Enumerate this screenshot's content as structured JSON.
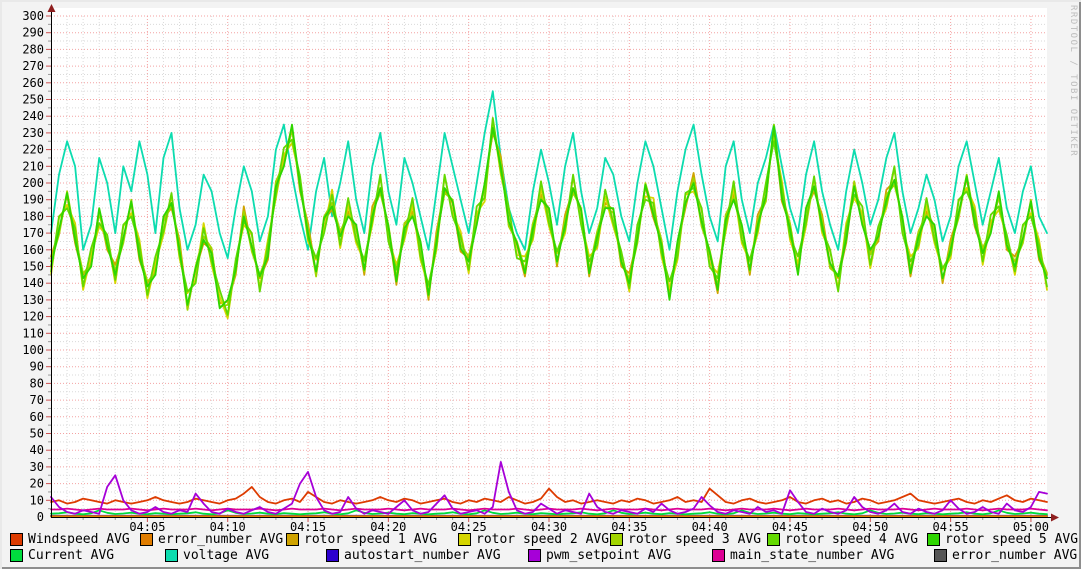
{
  "watermark": "RRDTOOL / TOBI OETIKER",
  "legend": {
    "rows": [
      {
        "items": [
          {
            "name": "windspeed",
            "label": "Windspeed AVG",
            "color": "#dd3b00"
          },
          {
            "name": "error_number",
            "label": "error_number AVG",
            "color": "#e07d00"
          },
          {
            "name": "rotor_speed_1",
            "label": "rotor speed 1 AVG",
            "color": "#cfa300"
          },
          {
            "name": "rotor_speed_2",
            "label": "rotor speed 2 AVG",
            "color": "#d6d600"
          },
          {
            "name": "rotor_speed_3",
            "label": "rotor speed 3 AVG",
            "color": "#a2d500"
          },
          {
            "name": "rotor_speed_4",
            "label": "rotor speed 4 AVG",
            "color": "#63d900"
          },
          {
            "name": "rotor_speed_5",
            "label": "rotor speed 5 AVG",
            "color": "#2ed600"
          }
        ]
      },
      {
        "items": [
          {
            "name": "current",
            "label": "Current AVG",
            "color": "#00dd3e"
          },
          {
            "name": "voltage",
            "label": "voltage AVG",
            "color": "#0cdcaf"
          },
          {
            "name": "autostart_number",
            "label": "autostart_number AVG",
            "color": "#2c00cf"
          },
          {
            "name": "pwm_setpoint",
            "label": "pwm_setpoint AVG",
            "color": "#a600d8"
          },
          {
            "name": "main_state_number",
            "label": "main_state_number AVG",
            "color": "#dd0094"
          },
          {
            "name": "error_number_dark",
            "label": "error_number AVG",
            "color": "#555555"
          }
        ]
      }
    ]
  },
  "chart_data": {
    "type": "line",
    "title": "",
    "xlabel": "",
    "ylabel": "",
    "grid": true,
    "legend_position": "bottom",
    "point_count": 125,
    "x_axis": {
      "start": "03:59",
      "end": "05:01",
      "total_minutes": 62,
      "minor_step_minutes": 1,
      "major_ticks": [
        {
          "minute": 6,
          "label": "04:05"
        },
        {
          "minute": 11,
          "label": "04:10"
        },
        {
          "minute": 16,
          "label": "04:15"
        },
        {
          "minute": 21,
          "label": "04:20"
        },
        {
          "minute": 26,
          "label": "04:25"
        },
        {
          "minute": 31,
          "label": "04:30"
        },
        {
          "minute": 36,
          "label": "04:35"
        },
        {
          "minute": 41,
          "label": "04:40"
        },
        {
          "minute": 46,
          "label": "04:45"
        },
        {
          "minute": 51,
          "label": "04:50"
        },
        {
          "minute": 56,
          "label": "04:55"
        },
        {
          "minute": 61,
          "label": "05:00"
        }
      ]
    },
    "y_axis": {
      "min": 0,
      "max": 300,
      "major_step": 10,
      "minor_step": 5,
      "tick_labels": [
        "0",
        "10",
        "20",
        "30",
        "40",
        "50",
        "60",
        "70",
        "80",
        "90",
        "100",
        "110",
        "120",
        "130",
        "140",
        "150",
        "160",
        "170",
        "180",
        "190",
        "200",
        "210",
        "220",
        "230",
        "240",
        "250",
        "260",
        "270",
        "280",
        "290",
        "300"
      ]
    },
    "rotor_base": [
      150,
      175,
      190,
      170,
      140,
      155,
      180,
      165,
      145,
      170,
      185,
      160,
      135,
      150,
      175,
      190,
      160,
      130,
      145,
      170,
      155,
      130,
      125,
      150,
      180,
      165,
      140,
      160,
      195,
      215,
      230,
      200,
      170,
      150,
      175,
      190,
      165,
      185,
      170,
      150,
      180,
      200,
      170,
      145,
      170,
      185,
      160,
      135,
      165,
      200,
      185,
      165,
      150,
      180,
      195,
      235,
      210,
      180,
      160,
      150,
      170,
      195,
      180,
      155,
      175,
      200,
      180,
      150,
      165,
      190,
      180,
      155,
      140,
      170,
      195,
      185,
      160,
      135,
      160,
      190,
      200,
      180,
      155,
      140,
      175,
      195,
      170,
      150,
      175,
      195,
      230,
      195,
      170,
      150,
      180,
      200,
      175,
      155,
      140,
      170,
      195,
      180,
      155,
      170,
      190,
      205,
      175,
      150,
      165,
      185,
      170,
      145,
      160,
      185,
      200,
      180,
      155,
      175,
      190,
      165,
      150,
      170,
      185,
      160,
      140
    ],
    "series": [
      {
        "name": "autostart_number",
        "legend": "autostart_number AVG",
        "color": "#2c00cf",
        "value": 0.7
      },
      {
        "name": "error_number_dark",
        "legend": "error_number AVG",
        "color": "#555555",
        "value": 0.3
      },
      {
        "name": "error_number",
        "legend": "error_number AVG",
        "color": "#e07d00",
        "value": 0.5
      },
      {
        "name": "current",
        "legend": "Current AVG",
        "color": "#00dd3e",
        "pattern": [
          2,
          2.2,
          2.8,
          2,
          1.6,
          2.2,
          4,
          2.5,
          1.8,
          2.1,
          2.6,
          2,
          1.7,
          2.3,
          2,
          1.6
        ]
      },
      {
        "name": "main_state_number",
        "legend": "main_state_number AVG",
        "color": "#dd0094",
        "pattern": [
          4.5,
          4.5,
          5,
          4.5,
          4,
          4.5,
          5,
          4.5
        ]
      },
      {
        "name": "windspeed",
        "legend": "Windspeed AVG",
        "color": "#dd3b00",
        "values": [
          9,
          10,
          8,
          9,
          11,
          10,
          9,
          8,
          10,
          9,
          8,
          9,
          10,
          12,
          10,
          9,
          8,
          9,
          11,
          10,
          9,
          8,
          10,
          11,
          14,
          18,
          12,
          9,
          8,
          10,
          11,
          9,
          15,
          12,
          9,
          8,
          10,
          9,
          8,
          9,
          10,
          12,
          10,
          9,
          11,
          10,
          8,
          9,
          10,
          11,
          9,
          8,
          10,
          9,
          11,
          10,
          9,
          12,
          10,
          8,
          9,
          11,
          17,
          12,
          9,
          10,
          8,
          9,
          10,
          9,
          8,
          10,
          9,
          11,
          10,
          8,
          9,
          10,
          12,
          9,
          10,
          9,
          17,
          13,
          9,
          8,
          10,
          11,
          9,
          8,
          9,
          10,
          12,
          9,
          8,
          10,
          11,
          9,
          10,
          8,
          9,
          11,
          10,
          8,
          9,
          10,
          12,
          14,
          10,
          9,
          8,
          9,
          10,
          11,
          9,
          8,
          10,
          9,
          11,
          13,
          10,
          9,
          11,
          10,
          9
        ]
      },
      {
        "name": "voltage",
        "legend": "voltage AVG",
        "color": "#0cdcaf",
        "values": [
          170,
          205,
          225,
          210,
          160,
          175,
          215,
          200,
          170,
          210,
          195,
          225,
          205,
          170,
          215,
          230,
          185,
          160,
          175,
          205,
          195,
          170,
          155,
          185,
          210,
          195,
          165,
          180,
          220,
          235,
          205,
          180,
          160,
          195,
          215,
          180,
          200,
          225,
          190,
          170,
          210,
          230,
          195,
          175,
          215,
          200,
          180,
          160,
          195,
          230,
          210,
          190,
          170,
          200,
          230,
          255,
          215,
          185,
          170,
          160,
          195,
          220,
          200,
          175,
          210,
          230,
          195,
          170,
          185,
          215,
          205,
          180,
          165,
          200,
          225,
          210,
          185,
          160,
          195,
          220,
          235,
          205,
          180,
          165,
          210,
          225,
          190,
          170,
          200,
          215,
          235,
          210,
          185,
          170,
          205,
          225,
          195,
          175,
          160,
          195,
          220,
          200,
          175,
          190,
          215,
          230,
          195,
          170,
          185,
          205,
          190,
          165,
          180,
          210,
          225,
          200,
          175,
          195,
          215,
          185,
          170,
          195,
          210,
          180,
          170
        ]
      },
      {
        "name": "rotor_speed_1",
        "legend": "rotor speed 1 AVG",
        "color": "#cfa300",
        "base_ref": "rotor_base",
        "offset_pattern": [
          6,
          -4,
          3,
          -6,
          5,
          -2,
          4,
          -5
        ]
      },
      {
        "name": "rotor_speed_2",
        "legend": "rotor speed 2 AVG",
        "color": "#d6d600",
        "base_ref": "rotor_base",
        "offset_pattern": [
          -5,
          4,
          -3,
          6,
          -4,
          2,
          -6,
          3
        ]
      },
      {
        "name": "rotor_speed_3",
        "legend": "rotor speed 3 AVG",
        "color": "#a2d500",
        "base_ref": "rotor_base",
        "offset_pattern": [
          3,
          -6,
          5,
          -2,
          6,
          -4,
          2,
          -3
        ]
      },
      {
        "name": "rotor_speed_4",
        "legend": "rotor speed 4 AVG",
        "color": "#63d900",
        "base_ref": "rotor_base",
        "offset_pattern": [
          -3,
          5,
          -5,
          3,
          -2,
          6,
          -4,
          4
        ]
      },
      {
        "name": "rotor_speed_5",
        "legend": "rotor speed 5 AVG",
        "color": "#2ed600",
        "base_ref": "rotor_base",
        "offset_pattern": [
          0,
          -3,
          4,
          -4,
          3,
          -5,
          5,
          -2
        ]
      },
      {
        "name": "pwm_setpoint",
        "legend": "pwm_setpoint AVG",
        "color": "#a600d8",
        "values": [
          12,
          6,
          3,
          2,
          4,
          3,
          2,
          18,
          25,
          10,
          4,
          2,
          3,
          6,
          3,
          2,
          4,
          3,
          14,
          8,
          3,
          2,
          5,
          3,
          2,
          4,
          6,
          3,
          2,
          5,
          8,
          20,
          27,
          12,
          4,
          2,
          3,
          12,
          5,
          2,
          4,
          3,
          2,
          6,
          10,
          4,
          2,
          3,
          8,
          13,
          5,
          2,
          3,
          4,
          2,
          6,
          33,
          15,
          4,
          2,
          3,
          8,
          5,
          2,
          4,
          3,
          2,
          14,
          6,
          3,
          2,
          4,
          3,
          2,
          5,
          3,
          8,
          4,
          2,
          3,
          5,
          12,
          7,
          3,
          2,
          4,
          3,
          2,
          6,
          3,
          4,
          2,
          16,
          9,
          3,
          2,
          5,
          3,
          2,
          4,
          12,
          6,
          3,
          2,
          4,
          8,
          3,
          2,
          5,
          3,
          2,
          4,
          10,
          5,
          2,
          3,
          6,
          3,
          2,
          8,
          4,
          3,
          6,
          15,
          14
        ]
      }
    ]
  }
}
